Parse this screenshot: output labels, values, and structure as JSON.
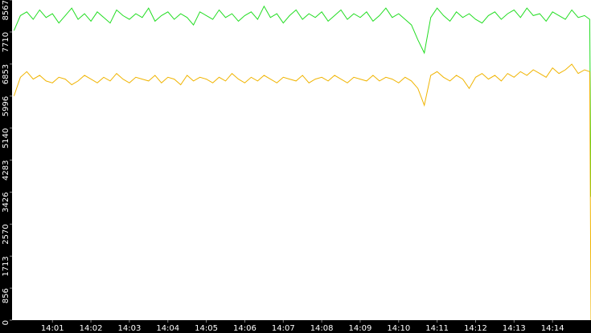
{
  "chart_data": {
    "type": "line",
    "x": [
      0,
      10,
      20,
      30,
      40,
      50,
      60,
      70,
      80,
      90,
      100,
      110,
      120,
      130,
      140,
      150,
      160,
      170,
      180,
      190,
      200,
      210,
      220,
      230,
      240,
      250,
      260,
      270,
      280,
      290,
      300,
      310,
      320,
      330,
      340,
      350,
      360,
      370,
      380,
      390,
      400,
      410,
      420,
      430,
      440,
      450,
      460,
      470,
      480,
      490,
      500,
      510,
      520,
      530,
      540,
      550,
      560,
      570,
      580,
      590,
      600,
      610,
      620,
      630,
      640,
      650,
      660,
      670,
      680,
      690,
      700,
      710,
      720,
      730,
      740,
      750,
      760,
      770,
      780,
      790,
      800,
      810,
      820,
      830,
      840,
      850,
      860,
      870,
      880,
      890,
      898,
      900
    ],
    "series": [
      {
        "color": "#22dd22",
        "values": [
          7750,
          8150,
          8250,
          8050,
          8300,
          8100,
          8200,
          7950,
          8150,
          8350,
          8050,
          8200,
          8000,
          8250,
          8100,
          7950,
          8300,
          8150,
          8050,
          8200,
          8100,
          8350,
          8000,
          8150,
          8250,
          8050,
          8200,
          8100,
          7900,
          8250,
          8150,
          8050,
          8300,
          8100,
          8200,
          8000,
          8150,
          8250,
          8050,
          8400,
          8100,
          8200,
          7950,
          8150,
          8300,
          8050,
          8200,
          8100,
          8250,
          8000,
          8150,
          8300,
          8050,
          8200,
          8100,
          8250,
          8000,
          8150,
          8350,
          8100,
          8200,
          8050,
          7900,
          7500,
          7150,
          8100,
          8350,
          8150,
          8000,
          8250,
          8100,
          8200,
          8050,
          7950,
          8150,
          8250,
          8050,
          8200,
          8300,
          8100,
          8350,
          8150,
          8200,
          8000,
          8250,
          8150,
          8050,
          8300,
          8100,
          8150,
          8050,
          3300
        ]
      },
      {
        "color": "#f0b400",
        "values": [
          6000,
          6500,
          6650,
          6450,
          6550,
          6400,
          6350,
          6500,
          6450,
          6300,
          6400,
          6550,
          6450,
          6350,
          6500,
          6400,
          6600,
          6450,
          6350,
          6500,
          6450,
          6400,
          6550,
          6350,
          6500,
          6450,
          6300,
          6550,
          6400,
          6500,
          6450,
          6350,
          6500,
          6400,
          6600,
          6450,
          6350,
          6500,
          6400,
          6550,
          6450,
          6350,
          6500,
          6450,
          6400,
          6550,
          6350,
          6450,
          6500,
          6400,
          6550,
          6450,
          6350,
          6500,
          6450,
          6400,
          6550,
          6400,
          6500,
          6450,
          6350,
          6500,
          6400,
          6200,
          5750,
          6550,
          6650,
          6500,
          6400,
          6550,
          6450,
          6200,
          6500,
          6600,
          6450,
          6550,
          6400,
          6600,
          6500,
          6650,
          6550,
          6700,
          6600,
          6500,
          6750,
          6600,
          6700,
          6850,
          6600,
          6700,
          6650,
          0
        ]
      }
    ],
    "xlim": [
      -3,
      900
    ],
    "xticks": [
      {
        "value": 60,
        "label": "14:01"
      },
      {
        "value": 120,
        "label": "14:02"
      },
      {
        "value": 180,
        "label": "14:03"
      },
      {
        "value": 240,
        "label": "14:04"
      },
      {
        "value": 300,
        "label": "14:05"
      },
      {
        "value": 360,
        "label": "14:06"
      },
      {
        "value": 420,
        "label": "14:07"
      },
      {
        "value": 480,
        "label": "14:08"
      },
      {
        "value": 540,
        "label": "14:09"
      },
      {
        "value": 600,
        "label": "14:10"
      },
      {
        "value": 660,
        "label": "14:11"
      },
      {
        "value": 720,
        "label": "14:12"
      },
      {
        "value": 780,
        "label": "14:13"
      },
      {
        "value": 840,
        "label": "14:14"
      }
    ],
    "ylim": [
      0,
      8567
    ],
    "yticks": [
      0,
      856,
      1713,
      2570,
      3426,
      4283,
      5140,
      5996,
      6853,
      7710,
      8567
    ]
  }
}
